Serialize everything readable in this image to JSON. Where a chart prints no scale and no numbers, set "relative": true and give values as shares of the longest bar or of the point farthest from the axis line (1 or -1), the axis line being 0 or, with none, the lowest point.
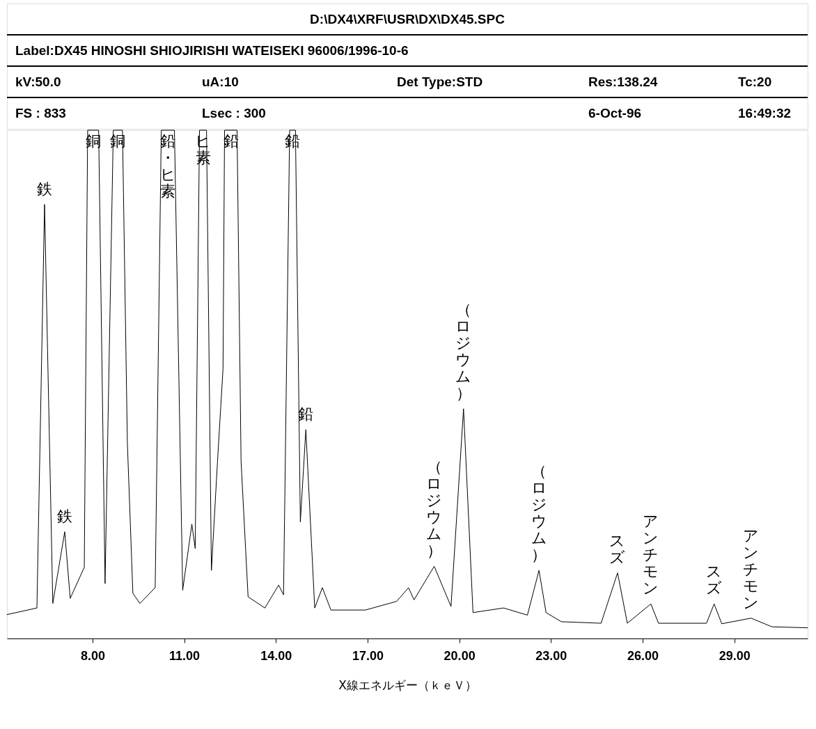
{
  "chart_data": {
    "type": "line",
    "title": "D:\\DX4\\XRF\\USR\\DX\\DX45.SPC",
    "xlabel": "X線エネルギー（ｋｅＶ）",
    "relative": true,
    "color": "#000000",
    "grid": false,
    "marker": "none",
    "tick_labels": "x",
    "xlim": [
      5.2,
      31.4
    ],
    "xticks": [
      {
        "value": 8,
        "label": "8.00"
      },
      {
        "value": 11,
        "label": "11.00"
      },
      {
        "value": 14,
        "label": "14.00"
      },
      {
        "value": 17,
        "label": "17.00"
      },
      {
        "value": 20,
        "label": "20.00"
      },
      {
        "value": 23,
        "label": "23.00"
      },
      {
        "value": 26,
        "label": "26.00"
      },
      {
        "value": 29,
        "label": "29.00"
      }
    ],
    "x": [
      5.2,
      6.18,
      6.43,
      6.7,
      7.09,
      7.27,
      7.73,
      7.84,
      8.2,
      8.41,
      8.68,
      8.98,
      9.14,
      9.32,
      9.55,
      10.05,
      10.25,
      10.68,
      10.95,
      11.25,
      11.36,
      11.5,
      11.73,
      11.89,
      12.09,
      12.27,
      12.32,
      12.73,
      12.86,
      13.09,
      13.64,
      14.09,
      14.25,
      14.45,
      14.64,
      14.8,
      14.98,
      15.27,
      15.52,
      15.8,
      16.93,
      17.95,
      18.34,
      18.52,
      19.18,
      19.73,
      20.14,
      20.45,
      21.45,
      22.23,
      22.61,
      22.84,
      23.34,
      24.64,
      25.18,
      25.5,
      26.27,
      26.52,
      28.09,
      28.34,
      28.59,
      29.55,
      30.23,
      31.4
    ],
    "values": [
      0.047,
      0.06,
      0.854,
      0.069,
      0.21,
      0.079,
      0.14,
      1.0,
      1.0,
      0.108,
      1.0,
      1.0,
      0.385,
      0.089,
      0.069,
      0.1,
      1.0,
      1.0,
      0.095,
      0.225,
      0.177,
      1.0,
      1.0,
      0.134,
      0.349,
      0.531,
      1.0,
      1.0,
      0.349,
      0.082,
      0.06,
      0.105,
      0.086,
      1.0,
      1.0,
      0.229,
      0.411,
      0.06,
      0.1,
      0.056,
      0.056,
      0.073,
      0.1,
      0.076,
      0.142,
      0.063,
      0.452,
      0.051,
      0.06,
      0.046,
      0.134,
      0.051,
      0.033,
      0.03,
      0.129,
      0.03,
      0.068,
      0.03,
      0.03,
      0.068,
      0.029,
      0.04,
      0.023,
      0.021
    ],
    "annotations": [
      "Label:DX45 HINOSHI SHIOJIRISHI WATEISEKI 96006/1996-10-6",
      "kV:50.0",
      "uA:10",
      "Det Type:STD",
      "Res:138.24",
      "Tc:20",
      "FS : 833",
      "Lsec : 300",
      "6-Oct-96",
      "16:49:32",
      {
        "text": "鉄",
        "x": 6.43,
        "y": 0.854
      },
      {
        "text": "鉄",
        "x": 7.09,
        "y": 0.21
      },
      {
        "text": "銅",
        "x": 8.02,
        "y": 1.0
      },
      {
        "text": "銅",
        "x": 8.83,
        "y": 1.0
      },
      {
        "text": "鉛・ヒ素",
        "x": 10.47,
        "y": 1.0
      },
      {
        "text": "ヒ素",
        "x": 11.62,
        "y": 1.0
      },
      {
        "text": "鉛",
        "x": 12.53,
        "y": 1.0
      },
      {
        "text": "鉛",
        "x": 14.55,
        "y": 1.0
      },
      {
        "text": "鉛",
        "x": 14.98,
        "y": 0.411
      },
      {
        "text": "（ロジウム）",
        "x": 19.18,
        "y": 0.142
      },
      {
        "text": "（ロジウム）",
        "x": 20.14,
        "y": 0.452
      },
      {
        "text": "（ロジウム）",
        "x": 22.61,
        "y": 0.134
      },
      {
        "text": "スズ",
        "x": 25.18,
        "y": 0.129
      },
      {
        "text": "アンチモン",
        "x": 26.27,
        "y": 0.068
      },
      {
        "text": "スズ",
        "x": 28.34,
        "y": 0.068
      },
      {
        "text": "アンチモン",
        "x": 29.55,
        "y": 0.04
      }
    ]
  }
}
